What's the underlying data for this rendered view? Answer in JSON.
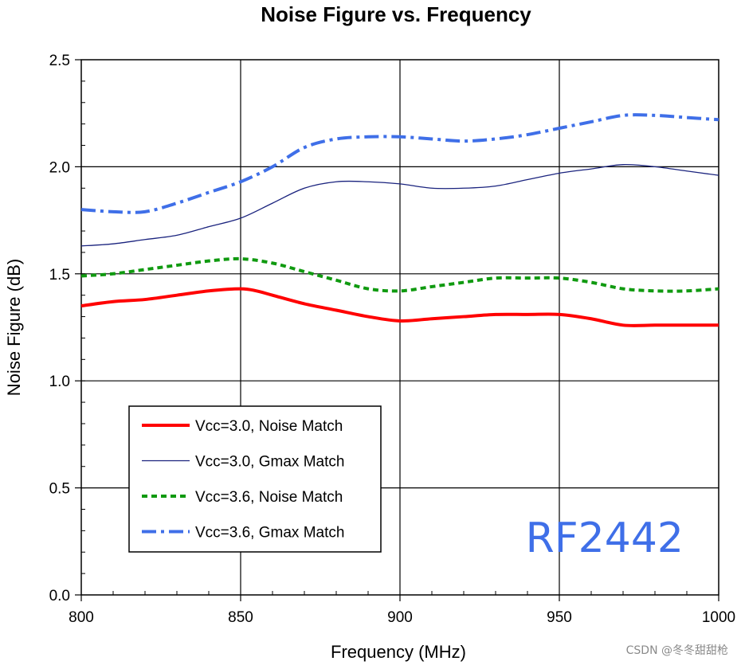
{
  "chart_data": {
    "type": "line",
    "title": "Noise Figure vs. Frequency",
    "xlabel": "Frequency (MHz)",
    "ylabel": "Noise Figure (dB)",
    "xlim": [
      800,
      1000
    ],
    "ylim": [
      0,
      2.5
    ],
    "xticks": [
      800,
      850,
      900,
      950,
      1000
    ],
    "yticks": [
      0.0,
      0.5,
      1.0,
      1.5,
      2.0,
      2.5
    ],
    "xtick_labels": [
      "800",
      "850",
      "900",
      "950",
      "1000"
    ],
    "ytick_labels": [
      "0.0",
      "0.5",
      "1.0",
      "1.5",
      "2.0",
      "2.5"
    ],
    "grid": true,
    "legend_position": "lower-left",
    "series": [
      {
        "name": "Vcc=3.0, Noise Match",
        "color": "#ff0000",
        "style": "solid-thick",
        "x": [
          800,
          810,
          820,
          830,
          840,
          850,
          855,
          860,
          870,
          880,
          890,
          900,
          910,
          920,
          930,
          940,
          950,
          960,
          970,
          980,
          990,
          1000
        ],
        "y": [
          1.35,
          1.37,
          1.38,
          1.4,
          1.42,
          1.43,
          1.42,
          1.4,
          1.36,
          1.33,
          1.3,
          1.28,
          1.29,
          1.3,
          1.31,
          1.31,
          1.31,
          1.29,
          1.26,
          1.26,
          1.26,
          1.26
        ]
      },
      {
        "name": "Vcc=3.0, Gmax Match",
        "color": "#1a237e",
        "style": "solid-thin",
        "x": [
          800,
          810,
          820,
          830,
          840,
          850,
          860,
          870,
          880,
          890,
          900,
          910,
          920,
          930,
          940,
          950,
          960,
          970,
          980,
          990,
          1000
        ],
        "y": [
          1.63,
          1.64,
          1.66,
          1.68,
          1.72,
          1.76,
          1.83,
          1.9,
          1.93,
          1.93,
          1.92,
          1.9,
          1.9,
          1.91,
          1.94,
          1.97,
          1.99,
          2.01,
          2.0,
          1.98,
          1.96
        ]
      },
      {
        "name": "Vcc=3.6, Noise Match",
        "color": "#109a10",
        "style": "dotted",
        "x": [
          800,
          810,
          820,
          830,
          840,
          850,
          860,
          870,
          880,
          890,
          900,
          910,
          920,
          930,
          940,
          950,
          960,
          970,
          980,
          990,
          1000
        ],
        "y": [
          1.49,
          1.5,
          1.52,
          1.54,
          1.56,
          1.57,
          1.55,
          1.51,
          1.47,
          1.43,
          1.42,
          1.44,
          1.46,
          1.48,
          1.48,
          1.48,
          1.46,
          1.43,
          1.42,
          1.42,
          1.43
        ]
      },
      {
        "name": "Vcc=3.6, Gmax Match",
        "color": "#3f6fe8",
        "style": "dash-dot",
        "x": [
          800,
          810,
          820,
          830,
          840,
          850,
          860,
          870,
          880,
          890,
          900,
          910,
          920,
          930,
          940,
          950,
          960,
          970,
          980,
          990,
          1000
        ],
        "y": [
          1.8,
          1.79,
          1.79,
          1.83,
          1.88,
          1.93,
          2.0,
          2.09,
          2.13,
          2.14,
          2.14,
          2.13,
          2.12,
          2.13,
          2.15,
          2.18,
          2.21,
          2.24,
          2.24,
          2.23,
          2.22
        ]
      }
    ],
    "annotations": [
      "RF2442"
    ],
    "watermark": "CSDN @冬冬甜甜枪"
  }
}
